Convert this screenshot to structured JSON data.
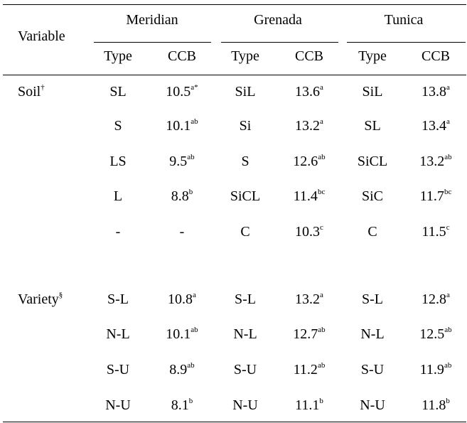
{
  "table": {
    "header": {
      "variable": "Variable",
      "locations": [
        "Meridian",
        "Grenada",
        "Tunica"
      ],
      "type": "Type",
      "ccb": "CCB"
    },
    "sections": [
      {
        "label": "Soil",
        "label_sup": "†",
        "rows": [
          [
            {
              "t": "SL"
            },
            {
              "v": "10.5",
              "s": "a*"
            },
            {
              "t": "SiL"
            },
            {
              "v": "13.6",
              "s": "a"
            },
            {
              "t": "SiL"
            },
            {
              "v": "13.8",
              "s": "a"
            }
          ],
          [
            {
              "t": "S"
            },
            {
              "v": "10.1",
              "s": "ab"
            },
            {
              "t": "Si"
            },
            {
              "v": "13.2",
              "s": "a"
            },
            {
              "t": "SL"
            },
            {
              "v": "13.4",
              "s": "a"
            }
          ],
          [
            {
              "t": "LS"
            },
            {
              "v": "9.5",
              "s": "ab"
            },
            {
              "t": "S"
            },
            {
              "v": "12.6",
              "s": "ab"
            },
            {
              "t": "SiCL"
            },
            {
              "v": "13.2",
              "s": "ab"
            }
          ],
          [
            {
              "t": "L"
            },
            {
              "v": "8.8",
              "s": "b"
            },
            {
              "t": "SiCL"
            },
            {
              "v": "11.4",
              "s": "bc"
            },
            {
              "t": "SiC"
            },
            {
              "v": "11.7",
              "s": "bc"
            }
          ],
          [
            {
              "t": "-"
            },
            {
              "v": "-",
              "s": ""
            },
            {
              "t": "C"
            },
            {
              "v": "10.3",
              "s": "c"
            },
            {
              "t": "C"
            },
            {
              "v": "11.5",
              "s": "c"
            }
          ]
        ]
      },
      {
        "label": "Variety",
        "label_sup": "§",
        "rows": [
          [
            {
              "t": "S-L"
            },
            {
              "v": "10.8",
              "s": "a"
            },
            {
              "t": "S-L"
            },
            {
              "v": "13.2",
              "s": "a"
            },
            {
              "t": "S-L"
            },
            {
              "v": "12.8",
              "s": "a"
            }
          ],
          [
            {
              "t": "N-L"
            },
            {
              "v": "10.1",
              "s": "ab"
            },
            {
              "t": "N-L"
            },
            {
              "v": "12.7",
              "s": "ab"
            },
            {
              "t": "N-L"
            },
            {
              "v": "12.5",
              "s": "ab"
            }
          ],
          [
            {
              "t": "S-U"
            },
            {
              "v": "8.9",
              "s": "ab"
            },
            {
              "t": "S-U"
            },
            {
              "v": "11.2",
              "s": "ab"
            },
            {
              "t": "S-U"
            },
            {
              "v": "11.9",
              "s": "ab"
            }
          ],
          [
            {
              "t": "N-U"
            },
            {
              "v": "8.1",
              "s": "b"
            },
            {
              "t": "N-U"
            },
            {
              "v": "11.1",
              "s": "b"
            },
            {
              "t": "N-U"
            },
            {
              "v": "11.8",
              "s": "b"
            }
          ]
        ]
      }
    ]
  }
}
